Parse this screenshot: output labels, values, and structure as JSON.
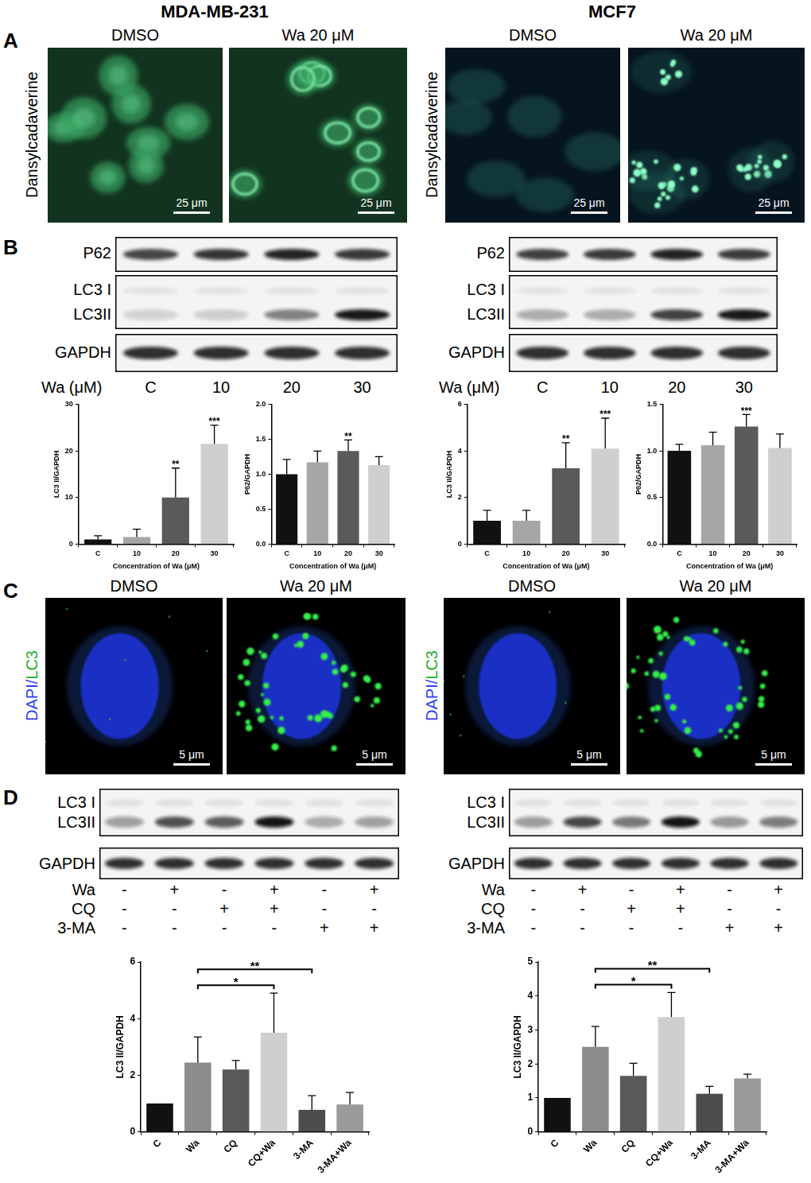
{
  "figure": {
    "columns": [
      "MDA-MB-231",
      "MCF7"
    ],
    "panel_A": {
      "letter": "A",
      "row_label": "Dansylcadaverine",
      "conditions": [
        "DMSO",
        "Wa 20 μM"
      ],
      "scale_bar": "25 μm"
    },
    "panel_B": {
      "letter": "B",
      "blot_rows": [
        "P62",
        "LC3 I",
        "LC3II",
        "GAPDH"
      ],
      "lane_header": "Wa (μM)",
      "lanes": [
        "C",
        "10",
        "20",
        "30"
      ]
    },
    "panel_C": {
      "letter": "C",
      "stain_label": [
        {
          "text": "DAPI",
          "color": "#2b3df0"
        },
        {
          "text": "/",
          "color": "#2b3df0"
        },
        {
          "text": "LC3",
          "color": "#22b02a"
        }
      ],
      "conditions": [
        "DMSO",
        "Wa 20 μM"
      ],
      "scale_bar": "5 μm"
    },
    "panel_D": {
      "letter": "D",
      "blot_rows": [
        "LC3 I",
        "LC3II",
        "GAPDH"
      ],
      "treatments": [
        {
          "name": "Wa",
          "signs": [
            "-",
            "+",
            "-",
            "+",
            "-",
            "+"
          ]
        },
        {
          "name": "CQ",
          "signs": [
            "-",
            "-",
            "+",
            "+",
            "-",
            "-"
          ]
        },
        {
          "name": "3-MA",
          "signs": [
            "-",
            "-",
            "-",
            "-",
            "+",
            "+"
          ]
        }
      ]
    }
  },
  "chart_data": [
    {
      "type": "bar",
      "x_label": "Concentration of Wa (μM)",
      "y_label": "LC3 II/GAPDH",
      "categories": [
        "C",
        "10",
        "20",
        "30"
      ],
      "values": [
        1.0,
        1.5,
        10.0,
        21.5
      ],
      "errors": [
        0.8,
        1.7,
        6.3,
        4.0
      ],
      "colors": [
        "#111111",
        "#a6a6a6",
        "#5a5a5a",
        "#cfcfcf"
      ],
      "ylim": [
        0,
        30
      ],
      "yticks": [
        0,
        10,
        20,
        30
      ],
      "grid": false,
      "annotations": [
        {
          "category": "20",
          "label": "**"
        },
        {
          "category": "30",
          "label": "***"
        }
      ]
    },
    {
      "type": "bar",
      "x_label": "Concentration of Wa (μM)",
      "y_label": "P62/GAPDH",
      "categories": [
        "C",
        "10",
        "20",
        "30"
      ],
      "values": [
        1.0,
        1.17,
        1.33,
        1.13
      ],
      "errors": [
        0.21,
        0.16,
        0.16,
        0.12
      ],
      "colors": [
        "#111111",
        "#a6a6a6",
        "#5a5a5a",
        "#cfcfcf"
      ],
      "ylim": [
        0,
        2.0
      ],
      "yticks": [
        {
          "value": 0,
          "label": "0.0"
        },
        {
          "value": 0.5,
          "label": "0.5"
        },
        {
          "value": 1.0,
          "label": "1.0"
        },
        {
          "value": 1.5,
          "label": "1.5"
        },
        {
          "value": 2.0,
          "label": "2.0"
        }
      ],
      "grid": false,
      "annotations": [
        {
          "category": "20",
          "label": "**"
        }
      ]
    },
    {
      "type": "bar",
      "x_label": "Concentration of Wa (μM)",
      "y_label": "LC3 II/GAPDH",
      "categories": [
        "C",
        "10",
        "20",
        "30"
      ],
      "values": [
        1.0,
        1.0,
        3.25,
        4.1
      ],
      "errors": [
        0.45,
        0.45,
        1.1,
        1.3
      ],
      "colors": [
        "#111111",
        "#a6a6a6",
        "#5a5a5a",
        "#cfcfcf"
      ],
      "ylim": [
        0,
        6
      ],
      "yticks": [
        0,
        2,
        4,
        6
      ],
      "grid": false,
      "annotations": [
        {
          "category": "20",
          "label": "**"
        },
        {
          "category": "30",
          "label": "***"
        }
      ]
    },
    {
      "type": "bar",
      "x_label": "Concentration of Wa (μM)",
      "y_label": "P62/GAPDH",
      "categories": [
        "C",
        "10",
        "20",
        "30"
      ],
      "values": [
        1.0,
        1.06,
        1.26,
        1.03
      ],
      "errors": [
        0.07,
        0.14,
        0.13,
        0.15
      ],
      "colors": [
        "#111111",
        "#a6a6a6",
        "#5a5a5a",
        "#cfcfcf"
      ],
      "ylim": [
        0,
        1.5
      ],
      "yticks": [
        {
          "value": 0,
          "label": "0.0"
        },
        {
          "value": 0.5,
          "label": "0.5"
        },
        {
          "value": 1.0,
          "label": "1.0"
        },
        {
          "value": 1.5,
          "label": "1.5"
        }
      ],
      "grid": false,
      "annotations": [
        {
          "category": "20",
          "label": "***"
        }
      ]
    },
    {
      "type": "bar",
      "y_label": "LC3 II/GAPDH",
      "categories": [
        "C",
        "Wa",
        "CQ",
        "CQ+Wa",
        "3-MA",
        "3-MA+Wa"
      ],
      "values": [
        1.0,
        2.45,
        2.2,
        3.5,
        0.78,
        0.97
      ],
      "errors": [
        null,
        0.9,
        0.32,
        1.4,
        0.5,
        0.42
      ],
      "colors": [
        "#111111",
        "#8c8c8c",
        "#595959",
        "#cfcfcf",
        "#4d4d4d",
        "#9a9a9a"
      ],
      "ylim": [
        0,
        6
      ],
      "yticks": [
        0,
        2,
        4,
        6
      ],
      "grid": false,
      "brackets": [
        {
          "from": "Wa",
          "to": "CQ+Wa",
          "label": "*"
        },
        {
          "from": "Wa",
          "to": "3-MA",
          "label": "**"
        }
      ]
    },
    {
      "type": "bar",
      "y_label": "LC3 II/GAPDH",
      "categories": [
        "C",
        "Wa",
        "CQ",
        "CQ+Wa",
        "3-MA",
        "3-MA+Wa"
      ],
      "values": [
        1.0,
        2.5,
        1.65,
        3.38,
        1.12,
        1.57
      ],
      "errors": [
        null,
        0.6,
        0.37,
        0.72,
        0.22,
        0.13
      ],
      "colors": [
        "#111111",
        "#8c8c8c",
        "#595959",
        "#cfcfcf",
        "#4d4d4d",
        "#9a9a9a"
      ],
      "ylim": [
        0,
        5
      ],
      "yticks": [
        0,
        1,
        2,
        3,
        4,
        5
      ],
      "grid": false,
      "brackets": [
        {
          "from": "Wa",
          "to": "CQ+Wa",
          "label": "*"
        },
        {
          "from": "Wa",
          "to": "3-MA",
          "label": "**"
        }
      ]
    }
  ]
}
